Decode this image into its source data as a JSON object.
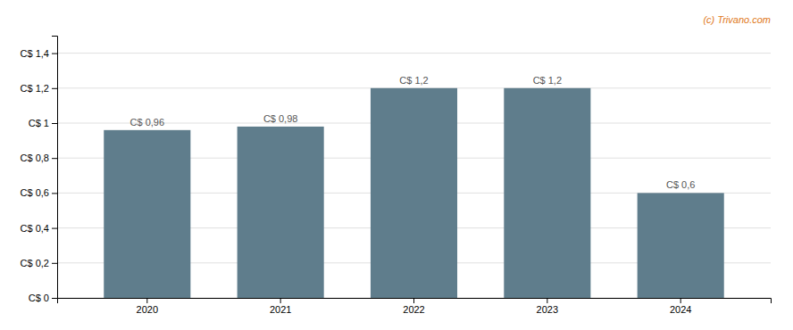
{
  "chart_data": {
    "type": "bar",
    "categories": [
      "2020",
      "2021",
      "2022",
      "2023",
      "2024"
    ],
    "values": [
      0.96,
      0.98,
      1.2,
      1.2,
      0.6
    ],
    "value_labels": [
      "C$ 0,96",
      "C$ 0,98",
      "C$ 1,2",
      "C$ 1,2",
      "C$ 0,6"
    ],
    "data_labels": true,
    "color": "#5f7d8c",
    "ylim": [
      0,
      1.5
    ],
    "yticks": [
      {
        "value": 0,
        "label": "C$ 0"
      },
      {
        "value": 0.2,
        "label": "C$ 0,2"
      },
      {
        "value": 0.4,
        "label": "C$ 0,4"
      },
      {
        "value": 0.6,
        "label": "C$ 0,6"
      },
      {
        "value": 0.8,
        "label": "C$ 0,8"
      },
      {
        "value": 1.0,
        "label": "C$ 1"
      },
      {
        "value": 1.2,
        "label": "C$ 1,2"
      },
      {
        "value": 1.4,
        "label": "C$ 1,4"
      }
    ],
    "grid": true,
    "annotations": [
      {
        "text": "(c) Trivano.com",
        "color": "#e07820"
      }
    ]
  }
}
